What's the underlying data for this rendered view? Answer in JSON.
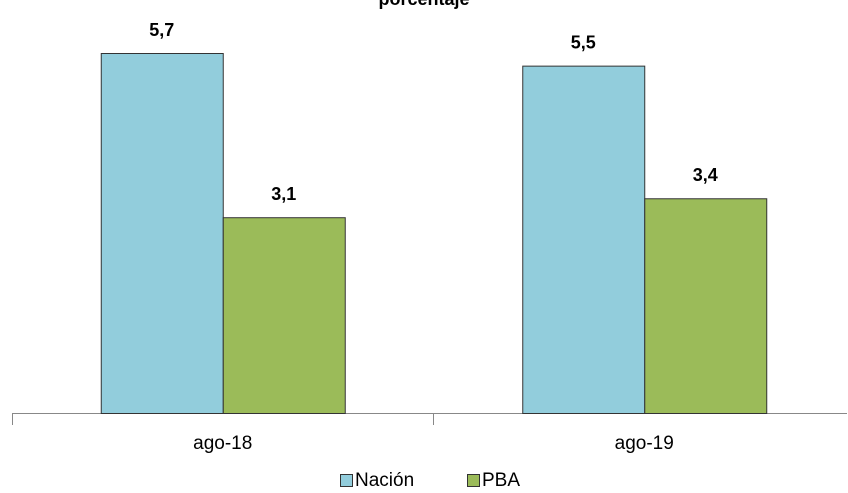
{
  "chart_data": {
    "type": "bar",
    "title": "porcentaje",
    "categories": [
      "ago-18",
      "ago-19"
    ],
    "series": [
      {
        "name": "Nación",
        "color": "#92cddc",
        "values": [
          5.7,
          5.5
        ],
        "value_labels": [
          "5,7",
          "5,5"
        ]
      },
      {
        "name": "PBA",
        "color": "#9bbb59",
        "values": [
          3.1,
          3.4
        ],
        "value_labels": [
          "3,1",
          "3,4"
        ]
      }
    ]
  }
}
